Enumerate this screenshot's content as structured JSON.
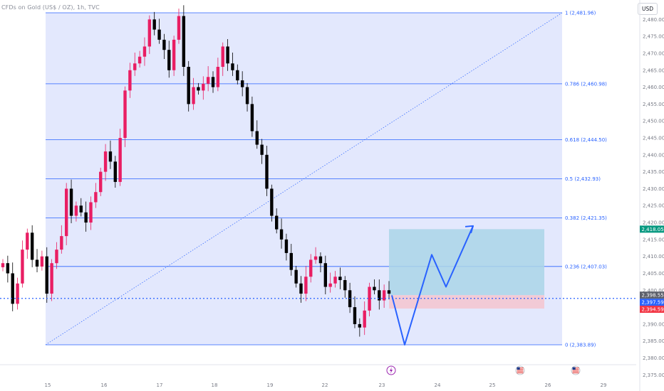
{
  "header": {
    "title": "CFDs on Gold (US$ / OZ), 1h, TVC",
    "currency_button": "USD"
  },
  "colors": {
    "up_candle": "#e91e63",
    "down_candle": "#000000",
    "fib_line": "#2962ff",
    "fib_fill": "#e3e8fd",
    "target_zone": "#aad5e8",
    "stop_zone": "#f3c6d2",
    "projection_arrow": "#2962ff",
    "tag_green": "#089981",
    "tag_gray": "#5d606b",
    "tag_blue": "#2962ff",
    "tag_red": "#f23645"
  },
  "chart_data": {
    "type": "candlestick",
    "symbol": "CFDs on Gold (US$ / OZ)",
    "timeframe": "1h",
    "ylim": [
      2373,
      2484
    ],
    "y_ticks": [
      2375,
      2380,
      2385,
      2390,
      2395,
      2400,
      2405,
      2410,
      2415,
      2420,
      2425,
      2430,
      2435,
      2440,
      2445,
      2450,
      2455,
      2460,
      2465,
      2470,
      2475,
      2480
    ],
    "y_tick_labels": [
      "2,375.00",
      "2,380.00",
      "2,385.00",
      "2,390.00",
      "2,395.00",
      "2,400.00",
      "2,405.00",
      "2,410.00",
      "2,415.00",
      "2,420.00",
      "2,425.00",
      "2,430.00",
      "2,435.00",
      "2,440.00",
      "2,445.00",
      "2,450.00",
      "2,455.00",
      "2,460.00",
      "2,465.00",
      "2,470.00",
      "2,475.00",
      "2,480.00"
    ],
    "x_ticks": [
      "15",
      "16",
      "17",
      "18",
      "19",
      "22",
      "23",
      "24",
      "25",
      "26",
      "29"
    ],
    "close_path": [
      2408,
      2405,
      2396,
      2402,
      2412,
      2417,
      2409,
      2407,
      2410,
      2399,
      2408,
      2412,
      2416,
      2430,
      2422,
      2425,
      2423,
      2420,
      2426,
      2429,
      2435,
      2441,
      2438,
      2432,
      2445,
      2459,
      2465,
      2467,
      2469,
      2472,
      2480,
      2477,
      2474,
      2471,
      2465,
      2474,
      2481,
      2466,
      2455,
      2460,
      2459,
      2461,
      2463,
      2460,
      2466,
      2472,
      2467,
      2465,
      2462,
      2460,
      2455,
      2447,
      2443,
      2440,
      2430,
      2422,
      2418,
      2415,
      2411,
      2406,
      2402,
      2399,
      2404,
      2409,
      2410,
      2408,
      2401,
      2402,
      2404,
      2403,
      2400,
      2395,
      2390,
      2389,
      2394,
      2401,
      2400,
      2397,
      2400,
      2399
    ],
    "fib_levels": [
      {
        "ratio": 1,
        "price": 2481.96,
        "label": "1 (2,481.96)"
      },
      {
        "ratio": 0.786,
        "price": 2460.98,
        "label": "0.786 (2,460.98)"
      },
      {
        "ratio": 0.618,
        "price": 2444.5,
        "label": "0.618 (2,444.50)"
      },
      {
        "ratio": 0.5,
        "price": 2432.93,
        "label": "0.5 (2,432.93)"
      },
      {
        "ratio": 0.382,
        "price": 2421.35,
        "label": "0.382 (2,421.35)"
      },
      {
        "ratio": 0.236,
        "price": 2407.03,
        "label": "0.236 (2,407.03)"
      },
      {
        "ratio": 0,
        "price": 2383.89,
        "label": "0 (2,383.89)"
      }
    ],
    "current_price": 2397.59,
    "price_tags": [
      {
        "price": 2418.05,
        "label": "2,418.05",
        "color": "#089981"
      },
      {
        "price": 2398.55,
        "label": "2,398.55",
        "color": "#5d606b"
      },
      {
        "price": 2397.59,
        "label": "2,397.59",
        "sublabel": "46:28",
        "color": "#2962ff"
      },
      {
        "price": 2394.59,
        "label": "2,394.59",
        "color": "#f23645"
      }
    ],
    "position": {
      "entry": 2398.55,
      "target": 2418.05,
      "stop": 2394.59
    },
    "projection_path": [
      2398.5,
      2383.9,
      2410.5,
      2401.0,
      2419.0
    ],
    "event_icons": [
      "lightning-icon",
      "us-flag-icon",
      "us-flag-icon"
    ]
  }
}
